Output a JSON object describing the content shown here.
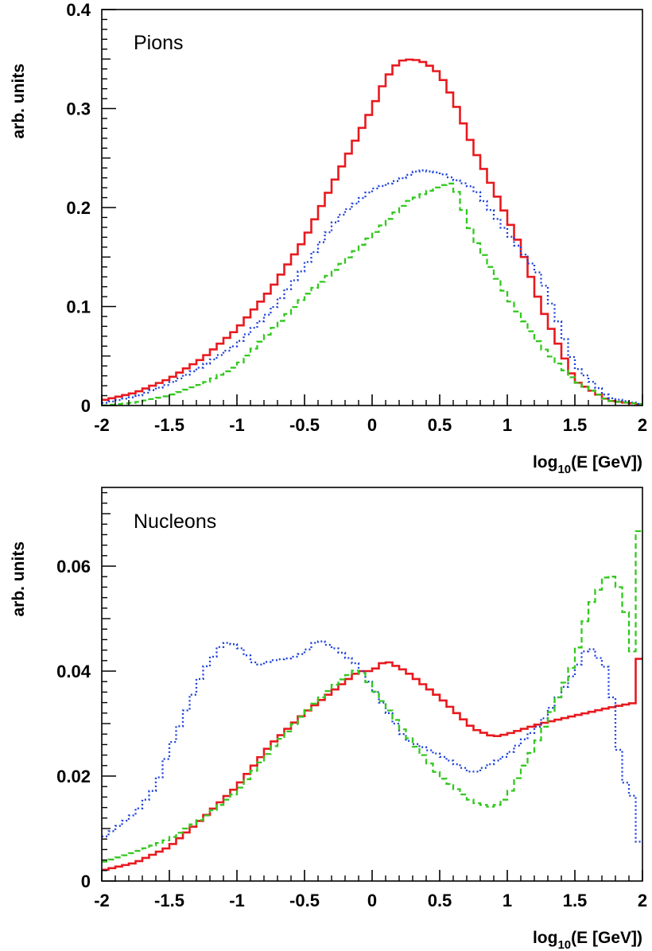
{
  "chart_data": [
    {
      "type": "line",
      "title": "Pions",
      "ylabel": "arb. units",
      "xlabel": {
        "prefix": "log",
        "sub": "10",
        "suffix": "(E [GeV])"
      },
      "xlim": [
        -2,
        2
      ],
      "ylim": [
        0,
        0.4
      ],
      "xticks": [
        -2,
        -1.5,
        -1,
        -0.5,
        0,
        0.5,
        1,
        1.5,
        2
      ],
      "xtick_labels": [
        "-2",
        "-1.5",
        "-1",
        "-0.5",
        "0",
        "0.5",
        "1",
        "1.5",
        "2"
      ],
      "yticks": [
        0,
        0.1,
        0.2,
        0.3,
        0.4
      ],
      "ytick_labels": [
        "0",
        "0.1",
        "0.2",
        "0.3",
        "0.4"
      ],
      "legend": "none",
      "grid": false,
      "series": [
        {
          "color": "#e8191e",
          "style": "solid",
          "points": [
            [
              -2,
              0.005
            ],
            [
              -1.75,
              0.013
            ],
            [
              -1.5,
              0.027
            ],
            [
              -1.25,
              0.048
            ],
            [
              -1,
              0.077
            ],
            [
              -0.75,
              0.117
            ],
            [
              -0.5,
              0.168
            ],
            [
              -0.25,
              0.235
            ],
            [
              0,
              0.3
            ],
            [
              0.1,
              0.33
            ],
            [
              0.2,
              0.348
            ],
            [
              0.3,
              0.35
            ],
            [
              0.4,
              0.346
            ],
            [
              0.5,
              0.335
            ],
            [
              0.6,
              0.31
            ],
            [
              0.75,
              0.26
            ],
            [
              1,
              0.19
            ],
            [
              1.1,
              0.16
            ],
            [
              1.25,
              0.1
            ],
            [
              1.5,
              0.025
            ],
            [
              1.75,
              0.005
            ],
            [
              2,
              0.001
            ]
          ]
        },
        {
          "color": "#1a3fd9",
          "style": "dotted",
          "points": [
            [
              -2,
              0.002
            ],
            [
              -1.75,
              0.009
            ],
            [
              -1.5,
              0.022
            ],
            [
              -1.25,
              0.04
            ],
            [
              -1,
              0.062
            ],
            [
              -0.75,
              0.095
            ],
            [
              -0.5,
              0.14
            ],
            [
              -0.25,
              0.19
            ],
            [
              0,
              0.218
            ],
            [
              0.2,
              0.228
            ],
            [
              0.35,
              0.238
            ],
            [
              0.5,
              0.235
            ],
            [
              0.75,
              0.22
            ],
            [
              1,
              0.175
            ],
            [
              1.25,
              0.13
            ],
            [
              1.5,
              0.04
            ],
            [
              1.75,
              0.008
            ],
            [
              2,
              0.001
            ]
          ]
        },
        {
          "color": "#32c81e",
          "style": "dashed",
          "points": [
            [
              -2,
              0.0
            ],
            [
              -1.75,
              0.003
            ],
            [
              -1.5,
              0.01
            ],
            [
              -1.25,
              0.022
            ],
            [
              -1,
              0.04
            ],
            [
              -0.75,
              0.075
            ],
            [
              -0.5,
              0.11
            ],
            [
              -0.25,
              0.14
            ],
            [
              0,
              0.172
            ],
            [
              0.25,
              0.205
            ],
            [
              0.5,
              0.222
            ],
            [
              0.6,
              0.225
            ],
            [
              0.75,
              0.17
            ],
            [
              1,
              0.11
            ],
            [
              1.25,
              0.06
            ],
            [
              1.5,
              0.025
            ],
            [
              1.75,
              0.005
            ],
            [
              2,
              0.001
            ]
          ]
        }
      ]
    },
    {
      "type": "line",
      "title": "Nucleons",
      "ylabel": "arb. units",
      "xlabel": {
        "prefix": "log",
        "sub": "10",
        "suffix": "(E [GeV])"
      },
      "xlim": [
        -2,
        2
      ],
      "ylim": [
        0,
        0.075
      ],
      "xticks": [
        -2,
        -1.5,
        -1,
        -0.5,
        0,
        0.5,
        1,
        1.5,
        2
      ],
      "xtick_labels": [
        "-2",
        "-1.5",
        "-1",
        "-0.5",
        "0",
        "0.5",
        "1",
        "1.5",
        "2"
      ],
      "yticks": [
        0,
        0.02,
        0.04,
        0.06
      ],
      "ytick_labels": [
        "0",
        "0.02",
        "0.04",
        "0.06"
      ],
      "legend": "none",
      "grid": false,
      "series": [
        {
          "color": "#e8191e",
          "style": "solid",
          "points": [
            [
              -2,
              0.002
            ],
            [
              -1.75,
              0.0035
            ],
            [
              -1.5,
              0.0065
            ],
            [
              -1.25,
              0.012
            ],
            [
              -1,
              0.018
            ],
            [
              -0.75,
              0.026
            ],
            [
              -0.5,
              0.032
            ],
            [
              -0.25,
              0.037
            ],
            [
              -0.1,
              0.04
            ],
            [
              0,
              0.04
            ],
            [
              0.1,
              0.042
            ],
            [
              0.25,
              0.04
            ],
            [
              0.5,
              0.035
            ],
            [
              0.75,
              0.029
            ],
            [
              0.9,
              0.0275
            ],
            [
              1,
              0.028
            ],
            [
              1.25,
              0.03
            ],
            [
              1.5,
              0.0315
            ],
            [
              1.75,
              0.033
            ],
            [
              1.95,
              0.034
            ],
            [
              1.98,
              0.044
            ],
            [
              2,
              0.0
            ]
          ]
        },
        {
          "color": "#1a3fd9",
          "style": "dotted",
          "points": [
            [
              -2,
              0.008
            ],
            [
              -1.75,
              0.013
            ],
            [
              -1.6,
              0.018
            ],
            [
              -1.5,
              0.025
            ],
            [
              -1.25,
              0.04
            ],
            [
              -1.1,
              0.0455
            ],
            [
              -1,
              0.045
            ],
            [
              -0.85,
              0.041
            ],
            [
              -0.75,
              0.042
            ],
            [
              -0.6,
              0.0425
            ],
            [
              -0.5,
              0.0435
            ],
            [
              -0.4,
              0.046
            ],
            [
              -0.25,
              0.044
            ],
            [
              -0.1,
              0.041
            ],
            [
              0,
              0.037
            ],
            [
              0.25,
              0.027
            ],
            [
              0.5,
              0.024
            ],
            [
              0.75,
              0.0205
            ],
            [
              1,
              0.024
            ],
            [
              1.25,
              0.03
            ],
            [
              1.5,
              0.04
            ],
            [
              1.6,
              0.045
            ],
            [
              1.75,
              0.04
            ],
            [
              1.85,
              0.02
            ],
            [
              1.95,
              0.015
            ],
            [
              2,
              0.0
            ]
          ]
        },
        {
          "color": "#32c81e",
          "style": "dashed",
          "points": [
            [
              -2,
              0.0035
            ],
            [
              -1.75,
              0.0055
            ],
            [
              -1.5,
              0.008
            ],
            [
              -1.25,
              0.012
            ],
            [
              -1,
              0.017
            ],
            [
              -0.75,
              0.025
            ],
            [
              -0.5,
              0.032
            ],
            [
              -0.25,
              0.038
            ],
            [
              -0.1,
              0.0405
            ],
            [
              0,
              0.037
            ],
            [
              0.25,
              0.028
            ],
            [
              0.5,
              0.02
            ],
            [
              0.75,
              0.015
            ],
            [
              0.9,
              0.014
            ],
            [
              1,
              0.016
            ],
            [
              1.25,
              0.028
            ],
            [
              1.5,
              0.042
            ],
            [
              1.6,
              0.052
            ],
            [
              1.75,
              0.059
            ],
            [
              1.85,
              0.055
            ],
            [
              1.95,
              0.04
            ],
            [
              1.98,
              0.072
            ],
            [
              2,
              0.0
            ]
          ]
        }
      ]
    }
  ]
}
